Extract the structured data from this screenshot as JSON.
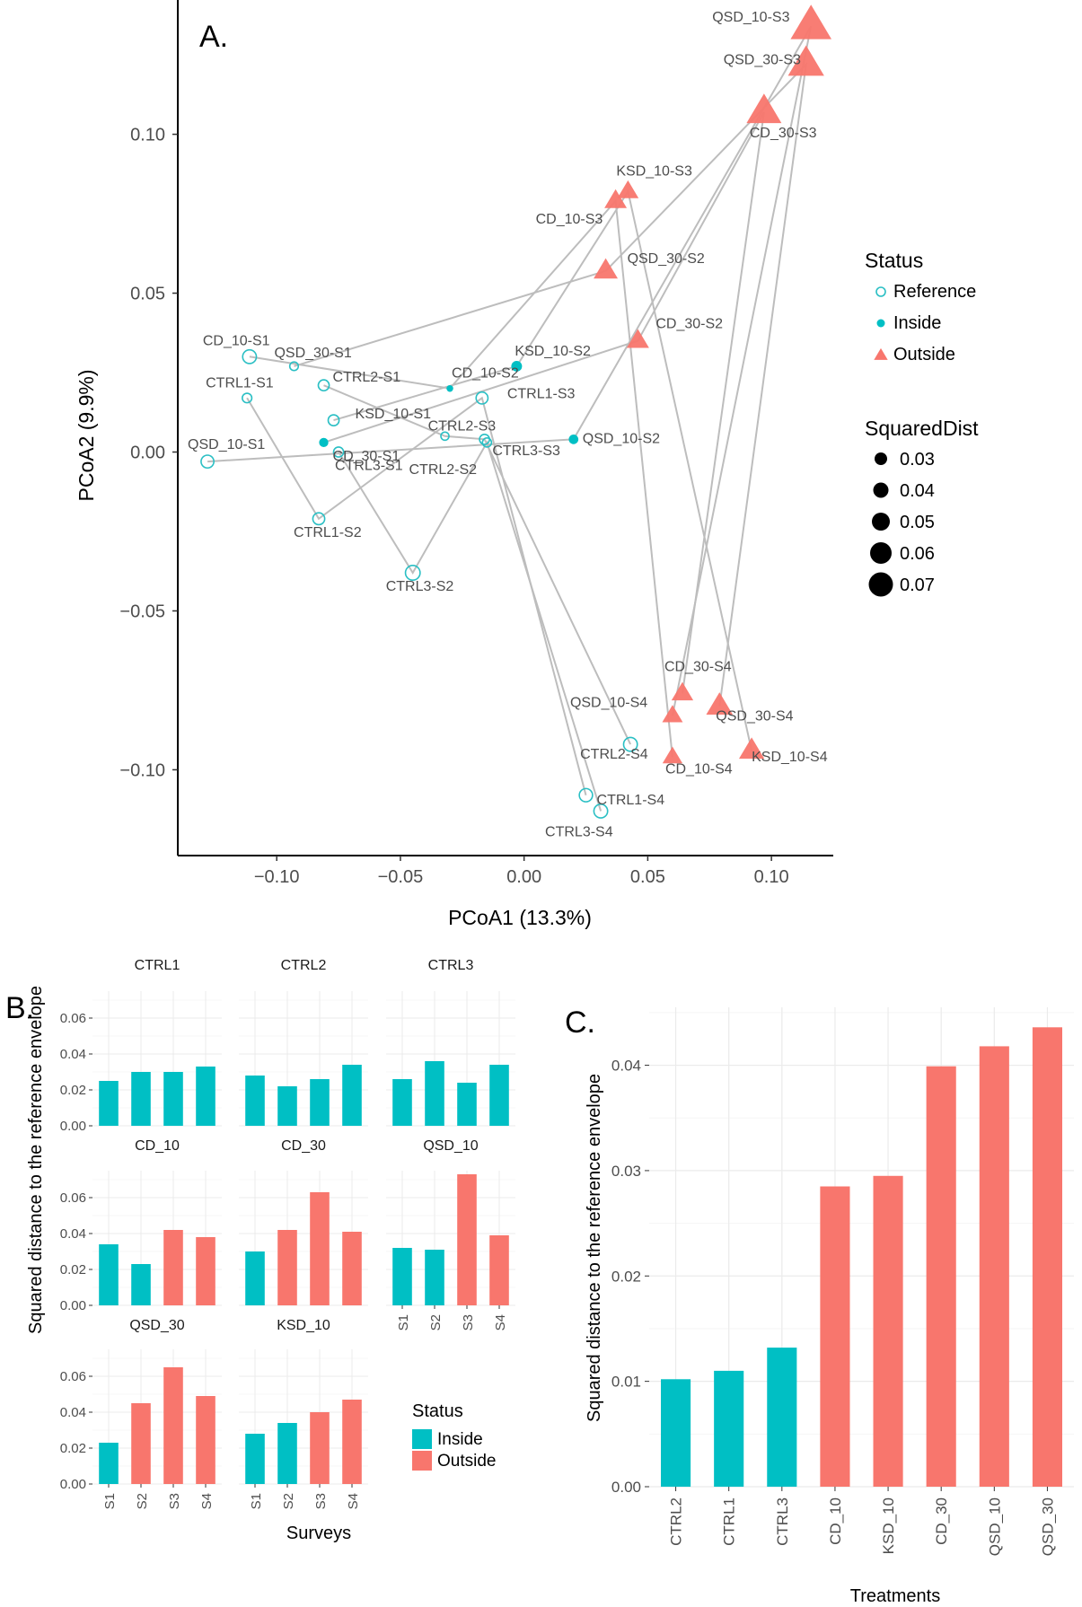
{
  "figure": {
    "panel_labels": [
      "A.",
      "B.",
      "C."
    ]
  },
  "colors": {
    "reference": "#2ABFC4",
    "inside": "#00BFC4",
    "outside": "#F8766D",
    "line": "#BDBDBD",
    "grid": "#EBEBEB"
  },
  "chart_data": [
    {
      "type": "scatter",
      "panel": "A.",
      "xlabel": "PCoA1 (13.3%)",
      "ylabel": "PCoA2 (9.9%)",
      "xlim": [
        -0.14,
        0.125
      ],
      "ylim": [
        -0.127,
        0.14
      ],
      "xticks": [
        -0.1,
        -0.05,
        0.0,
        0.05,
        0.1
      ],
      "yticks": [
        -0.1,
        -0.05,
        0.0,
        0.05,
        0.1
      ],
      "xtick_labels": [
        "−0.10",
        "−0.05",
        "0.00",
        "0.05",
        "0.10"
      ],
      "ytick_labels": [
        "−0.10",
        "−0.05",
        "0.00",
        "0.05",
        "0.10"
      ],
      "grid": false,
      "legend": {
        "position": "right",
        "status_title": "Status",
        "status_entries": [
          "Reference",
          "Inside",
          "Outside"
        ],
        "size_title": "SquaredDist",
        "size_entries": [
          "0.03",
          "0.04",
          "0.05",
          "0.06",
          "0.07"
        ]
      },
      "points": [
        {
          "label": "CD_10-S1",
          "x": -0.111,
          "y": 0.03,
          "status": "Reference",
          "dist": 0.034
        },
        {
          "label": "QSD_30-S1",
          "x": -0.093,
          "y": 0.027,
          "status": "Reference",
          "dist": 0.023
        },
        {
          "label": "CTRL1-S1",
          "x": -0.112,
          "y": 0.017,
          "status": "Reference",
          "dist": 0.025
        },
        {
          "label": "CTRL2-S1",
          "x": -0.081,
          "y": 0.021,
          "status": "Reference",
          "dist": 0.028
        },
        {
          "label": "KSD_10-S1",
          "x": -0.077,
          "y": 0.01,
          "status": "Reference",
          "dist": 0.028
        },
        {
          "label": "CD_30-S1",
          "x": -0.081,
          "y": 0.003,
          "status": "Inside",
          "dist": 0.03
        },
        {
          "label": "CTRL3-S1",
          "x": -0.075,
          "y": 0.0,
          "status": "Reference",
          "dist": 0.026
        },
        {
          "label": "QSD_10-S1",
          "x": -0.128,
          "y": -0.003,
          "status": "Reference",
          "dist": 0.032
        },
        {
          "label": "CTRL1-S2",
          "x": -0.083,
          "y": -0.021,
          "status": "Reference",
          "dist": 0.03
        },
        {
          "label": "CTRL3-S2",
          "x": -0.045,
          "y": -0.038,
          "status": "Reference",
          "dist": 0.036
        },
        {
          "label": "CD_10-S2",
          "x": -0.03,
          "y": 0.02,
          "status": "Inside",
          "dist": 0.023
        },
        {
          "label": "CTRL2-S2",
          "x": -0.032,
          "y": 0.005,
          "status": "Reference",
          "dist": 0.022
        },
        {
          "label": "KSD_10-S2",
          "x": -0.003,
          "y": 0.027,
          "status": "Inside",
          "dist": 0.034
        },
        {
          "label": "CTRL1-S3",
          "x": -0.017,
          "y": 0.017,
          "status": "Reference",
          "dist": 0.03
        },
        {
          "label": "CTRL2-S3",
          "x": -0.016,
          "y": 0.004,
          "status": "Reference",
          "dist": 0.026
        },
        {
          "label": "CTRL3-S3",
          "x": -0.015,
          "y": 0.003,
          "status": "Reference",
          "dist": 0.024
        },
        {
          "label": "QSD_10-S2",
          "x": 0.02,
          "y": 0.004,
          "status": "Inside",
          "dist": 0.031
        },
        {
          "label": "QSD_30-S2",
          "x": 0.033,
          "y": 0.057,
          "status": "Outside",
          "dist": 0.045
        },
        {
          "label": "CD_30-S2",
          "x": 0.046,
          "y": 0.035,
          "status": "Outside",
          "dist": 0.042
        },
        {
          "label": "CD_10-S3",
          "x": 0.037,
          "y": 0.079,
          "status": "Outside",
          "dist": 0.042
        },
        {
          "label": "KSD_10-S3",
          "x": 0.042,
          "y": 0.082,
          "status": "Outside",
          "dist": 0.04
        },
        {
          "label": "CD_30-S3",
          "x": 0.097,
          "y": 0.107,
          "status": "Outside",
          "dist": 0.063
        },
        {
          "label": "QSD_30-S3",
          "x": 0.114,
          "y": 0.122,
          "status": "Outside",
          "dist": 0.065
        },
        {
          "label": "QSD_10-S3",
          "x": 0.116,
          "y": 0.134,
          "status": "Outside",
          "dist": 0.073
        },
        {
          "label": "CD_30-S4",
          "x": 0.064,
          "y": -0.076,
          "status": "Outside",
          "dist": 0.041
        },
        {
          "label": "QSD_10-S4",
          "x": 0.06,
          "y": -0.083,
          "status": "Outside",
          "dist": 0.039
        },
        {
          "label": "QSD_30-S4",
          "x": 0.079,
          "y": -0.08,
          "status": "Outside",
          "dist": 0.049
        },
        {
          "label": "KSD_10-S4",
          "x": 0.092,
          "y": -0.094,
          "status": "Outside",
          "dist": 0.047
        },
        {
          "label": "CD_10-S4",
          "x": 0.06,
          "y": -0.096,
          "status": "Outside",
          "dist": 0.038
        },
        {
          "label": "CTRL2-S4",
          "x": 0.043,
          "y": -0.092,
          "status": "Reference",
          "dist": 0.034
        },
        {
          "label": "CTRL1-S4",
          "x": 0.025,
          "y": -0.108,
          "status": "Reference",
          "dist": 0.033
        },
        {
          "label": "CTRL3-S4",
          "x": 0.031,
          "y": -0.113,
          "status": "Reference",
          "dist": 0.034
        }
      ],
      "trajectories": [
        {
          "treatment": "CTRL1",
          "path": [
            "CTRL1-S1",
            "CTRL1-S2",
            "CTRL1-S3",
            "CTRL1-S4"
          ]
        },
        {
          "treatment": "CTRL2",
          "path": [
            "CTRL2-S1",
            "CTRL2-S2",
            "CTRL2-S3",
            "CTRL2-S4"
          ]
        },
        {
          "treatment": "CTRL3",
          "path": [
            "CTRL3-S1",
            "CTRL3-S2",
            "CTRL3-S3",
            "CTRL3-S4"
          ]
        },
        {
          "treatment": "CD_10",
          "path": [
            "CD_10-S1",
            "CD_10-S2",
            "CD_10-S3",
            "CD_10-S4"
          ]
        },
        {
          "treatment": "CD_30",
          "path": [
            "CD_30-S1",
            "CD_30-S2",
            "CD_30-S3",
            "CD_30-S4"
          ]
        },
        {
          "treatment": "QSD_10",
          "path": [
            "QSD_10-S1",
            "QSD_10-S2",
            "QSD_10-S3",
            "QSD_10-S4"
          ]
        },
        {
          "treatment": "QSD_30",
          "path": [
            "QSD_30-S1",
            "QSD_30-S2",
            "QSD_30-S3",
            "QSD_30-S4"
          ]
        },
        {
          "treatment": "KSD_10",
          "path": [
            "KSD_10-S1",
            "KSD_10-S2",
            "KSD_10-S3",
            "KSD_10-S4"
          ]
        }
      ]
    },
    {
      "type": "bar",
      "panel": "B.",
      "ylabel": "Squared distance to the reference envelope",
      "xlabel": "Surveys",
      "categories": [
        "S1",
        "S2",
        "S3",
        "S4"
      ],
      "ylim": [
        0,
        0.075
      ],
      "yticks": [
        0.0,
        0.02,
        0.04,
        0.06
      ],
      "ytick_labels": [
        "0.00",
        "0.02",
        "0.04",
        "0.06"
      ],
      "legend": {
        "title": "Status",
        "entries": [
          "Inside",
          "Outside"
        ]
      },
      "facets": [
        {
          "name": "CTRL1",
          "values": [
            0.025,
            0.03,
            0.03,
            0.033
          ],
          "status": [
            "Inside",
            "Inside",
            "Inside",
            "Inside"
          ]
        },
        {
          "name": "CTRL2",
          "values": [
            0.028,
            0.022,
            0.026,
            0.034
          ],
          "status": [
            "Inside",
            "Inside",
            "Inside",
            "Inside"
          ]
        },
        {
          "name": "CTRL3",
          "values": [
            0.026,
            0.036,
            0.024,
            0.034
          ],
          "status": [
            "Inside",
            "Inside",
            "Inside",
            "Inside"
          ]
        },
        {
          "name": "CD_10",
          "values": [
            0.034,
            0.023,
            0.042,
            0.038
          ],
          "status": [
            "Inside",
            "Inside",
            "Outside",
            "Outside"
          ]
        },
        {
          "name": "CD_30",
          "values": [
            0.03,
            0.042,
            0.063,
            0.041
          ],
          "status": [
            "Inside",
            "Outside",
            "Outside",
            "Outside"
          ]
        },
        {
          "name": "QSD_10",
          "values": [
            0.032,
            0.031,
            0.073,
            0.039
          ],
          "status": [
            "Inside",
            "Inside",
            "Outside",
            "Outside"
          ]
        },
        {
          "name": "QSD_30",
          "values": [
            0.023,
            0.045,
            0.065,
            0.049
          ],
          "status": [
            "Inside",
            "Outside",
            "Outside",
            "Outside"
          ]
        },
        {
          "name": "KSD_10",
          "values": [
            0.028,
            0.034,
            0.04,
            0.047
          ],
          "status": [
            "Inside",
            "Inside",
            "Outside",
            "Outside"
          ]
        }
      ]
    },
    {
      "type": "bar",
      "panel": "C.",
      "ylabel": "Squared distance to the reference envelope",
      "xlabel": "Treatments",
      "categories": [
        "CTRL2",
        "CTRL1",
        "CTRL3",
        "CD_10",
        "KSD_10",
        "CD_30",
        "QSD_10",
        "QSD_30"
      ],
      "values": [
        0.0102,
        0.011,
        0.0132,
        0.0285,
        0.0295,
        0.0399,
        0.0418,
        0.0436
      ],
      "status": [
        "Inside",
        "Inside",
        "Inside",
        "Outside",
        "Outside",
        "Outside",
        "Outside",
        "Outside"
      ],
      "ylim": [
        0,
        0.0455
      ],
      "yticks": [
        0.0,
        0.01,
        0.02,
        0.03,
        0.04
      ],
      "ytick_labels": [
        "0.00",
        "0.01",
        "0.02",
        "0.03",
        "0.04"
      ]
    }
  ]
}
